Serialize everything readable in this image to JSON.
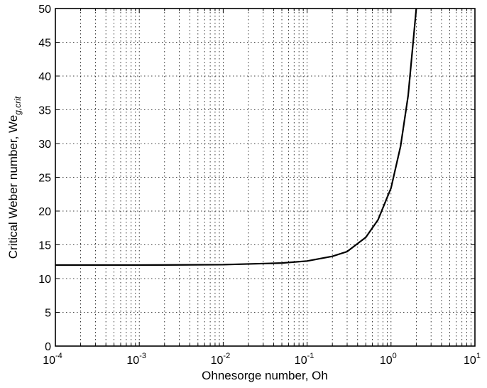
{
  "chart_data": {
    "type": "line",
    "title": "",
    "xlabel": "Ohnesorge number, Oh",
    "ylabel_main": "Critical Weber number, We",
    "ylabel_sub": "g,crit",
    "x_scale": "log",
    "xlim": [
      0.0001,
      10
    ],
    "ylim": [
      0,
      50
    ],
    "x_ticks": [
      {
        "base": "10",
        "exp": "-4",
        "value": 0.0001
      },
      {
        "base": "10",
        "exp": "-3",
        "value": 0.001
      },
      {
        "base": "10",
        "exp": "-2",
        "value": 0.01
      },
      {
        "base": "10",
        "exp": "-1",
        "value": 0.1
      },
      {
        "base": "10",
        "exp": "0",
        "value": 1
      },
      {
        "base": "10",
        "exp": "1",
        "value": 10
      }
    ],
    "y_ticks": [
      "0",
      "5",
      "10",
      "15",
      "20",
      "25",
      "30",
      "35",
      "40",
      "45",
      "50"
    ],
    "grid": true,
    "line_color": "#000000",
    "series": [
      {
        "x": [
          0.0001,
          0.001,
          0.01,
          0.05,
          0.1,
          0.2,
          0.3,
          0.5,
          0.7,
          1.0,
          1.3,
          1.6,
          2.0
        ],
        "y": [
          12.0,
          12.0,
          12.06,
          12.3,
          12.6,
          13.3,
          14.0,
          16.1,
          18.7,
          23.4,
          29.6,
          37.1,
          50.0
        ]
      }
    ]
  }
}
